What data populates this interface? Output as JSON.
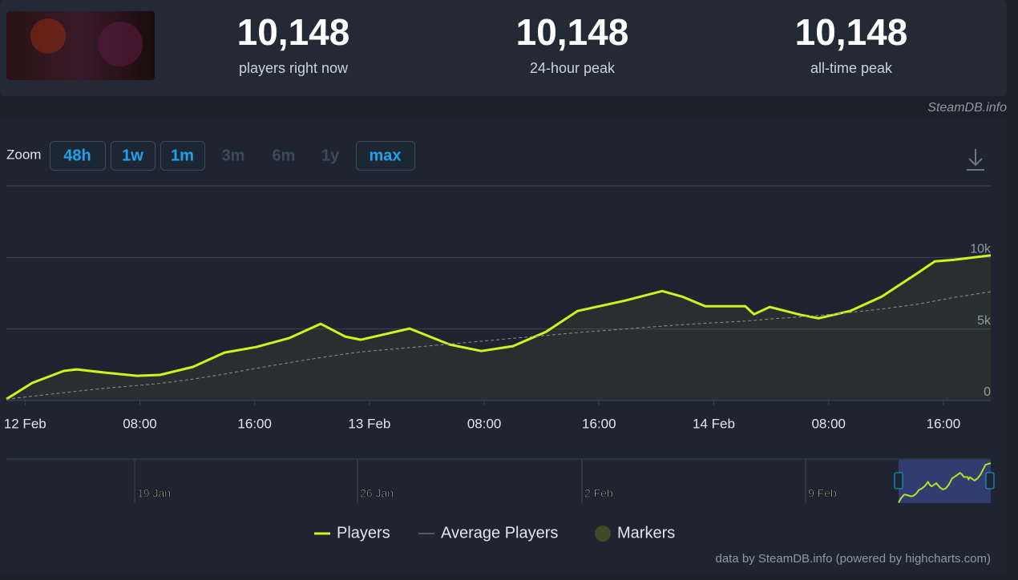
{
  "header": {
    "stats": [
      {
        "value": "10,148",
        "label": "players right now"
      },
      {
        "value": "10,148",
        "label": "24-hour peak"
      },
      {
        "value": "10,148",
        "label": "all-time peak"
      }
    ],
    "source": "SteamDB.info"
  },
  "zoom": {
    "label": "Zoom",
    "buttons": [
      {
        "text": "48h",
        "enabled": true
      },
      {
        "text": "1w",
        "enabled": true
      },
      {
        "text": "1m",
        "enabled": true
      },
      {
        "text": "3m",
        "enabled": false
      },
      {
        "text": "6m",
        "enabled": false
      },
      {
        "text": "1y",
        "enabled": false
      },
      {
        "text": "max",
        "enabled": true
      }
    ]
  },
  "chart_data": {
    "type": "line",
    "x": [
      -1.3,
      0.5,
      2.7,
      3.6,
      5.5,
      7.8,
      9.4,
      11.7,
      13.9,
      16.1,
      18.4,
      20.6,
      22.3,
      23.4,
      26.8,
      29.6,
      31.8,
      34.0,
      36.3,
      38.5,
      41.8,
      44.4,
      45.8,
      47.4,
      50.2,
      50.8,
      51.9,
      54.1,
      55.3,
      57.5,
      59.7,
      62.0,
      63.4,
      64.7,
      67.3
    ],
    "series": [
      {
        "name": "Players",
        "color": "#cdf51e",
        "values": [
          100,
          1230,
          2070,
          2180,
          1960,
          1730,
          1790,
          2350,
          3350,
          3740,
          4360,
          5360,
          4470,
          4250,
          5030,
          3910,
          3460,
          3800,
          4800,
          6260,
          6980,
          7650,
          7260,
          6590,
          6590,
          6030,
          6540,
          5980,
          5750,
          6260,
          7260,
          8770,
          9720,
          9830,
          10148
        ]
      },
      {
        "name": "Average Players",
        "color": "#8a8f96",
        "dashed": true,
        "values": [
          100,
          300,
          550,
          650,
          850,
          1050,
          1200,
          1500,
          1850,
          2250,
          2650,
          3000,
          3250,
          3400,
          3700,
          3950,
          4150,
          4350,
          4550,
          4750,
          5000,
          5200,
          5300,
          5400,
          5550,
          5600,
          5700,
          5850,
          5950,
          6150,
          6400,
          6700,
          6950,
          7200,
          7600
        ]
      }
    ],
    "markers": {
      "name": "Markers",
      "color": "#3f4a2a"
    },
    "xlim": [
      -1.3,
      67.3
    ],
    "xticks": [
      {
        "value": 0,
        "label": "12 Feb"
      },
      {
        "value": 8,
        "label": "08:00"
      },
      {
        "value": 16,
        "label": "16:00"
      },
      {
        "value": 24,
        "label": "13 Feb"
      },
      {
        "value": 32,
        "label": "08:00"
      },
      {
        "value": 40,
        "label": "16:00"
      },
      {
        "value": 48,
        "label": "14 Feb"
      },
      {
        "value": 56,
        "label": "08:00"
      },
      {
        "value": 64,
        "label": "16:00"
      }
    ],
    "ylim": [
      0,
      15000
    ],
    "yticks": [
      0,
      {
        "value": 5000,
        "label": "5k"
      },
      {
        "value": 10000,
        "label": "10k"
      }
    ],
    "grid": true,
    "navigator_labels": [
      "19 Jan",
      "26 Jan",
      "2 Feb",
      "9 Feb"
    ],
    "credits": "data by SteamDB.info (powered by highcharts.com)"
  }
}
